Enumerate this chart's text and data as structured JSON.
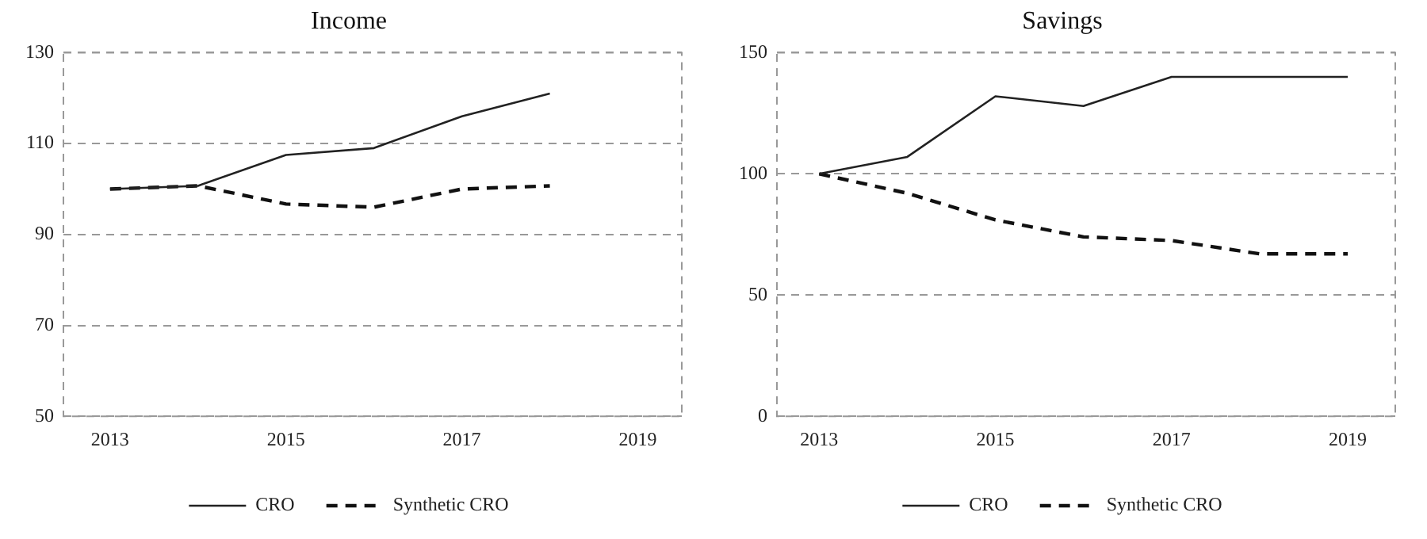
{
  "chart_data": [
    {
      "type": "line",
      "title": "Income",
      "x": [
        2013,
        2014,
        2015,
        2016,
        2017,
        2018
      ],
      "series": [
        {
          "name": "CRO",
          "color": "#222222",
          "line_style": "solid",
          "values": [
            100,
            100.7,
            107.5,
            109,
            116,
            121
          ]
        },
        {
          "name": "Synthetic CRO",
          "color": "#111111",
          "line_style": "dashed",
          "values": [
            100,
            100.7,
            96.7,
            96,
            100,
            100.7
          ]
        }
      ],
      "xlim": [
        2012.47,
        2019.5
      ],
      "xticks": [
        2013,
        2015,
        2017,
        2019
      ],
      "ylim": [
        50,
        130
      ],
      "yticks": [
        50,
        70,
        90,
        110,
        130
      ],
      "grid": "y",
      "legend": "bottom",
      "marker": "none"
    },
    {
      "type": "line",
      "title": "Savings",
      "x": [
        2013,
        2014,
        2015,
        2016,
        2017,
        2018,
        2019
      ],
      "series": [
        {
          "name": "CRO",
          "color": "#222222",
          "line_style": "solid",
          "values": [
            100,
            107,
            132,
            128,
            140,
            140,
            140
          ]
        },
        {
          "name": "Synthetic CRO",
          "color": "#111111",
          "line_style": "dashed",
          "values": [
            100,
            92,
            81,
            74,
            72.5,
            67,
            67
          ]
        }
      ],
      "xlim": [
        2012.52,
        2019.54
      ],
      "xticks": [
        2013,
        2015,
        2017,
        2019
      ],
      "ylim": [
        0,
        150
      ],
      "yticks": [
        0,
        50,
        100,
        150
      ],
      "grid": "y",
      "legend": "bottom",
      "marker": "none"
    }
  ]
}
